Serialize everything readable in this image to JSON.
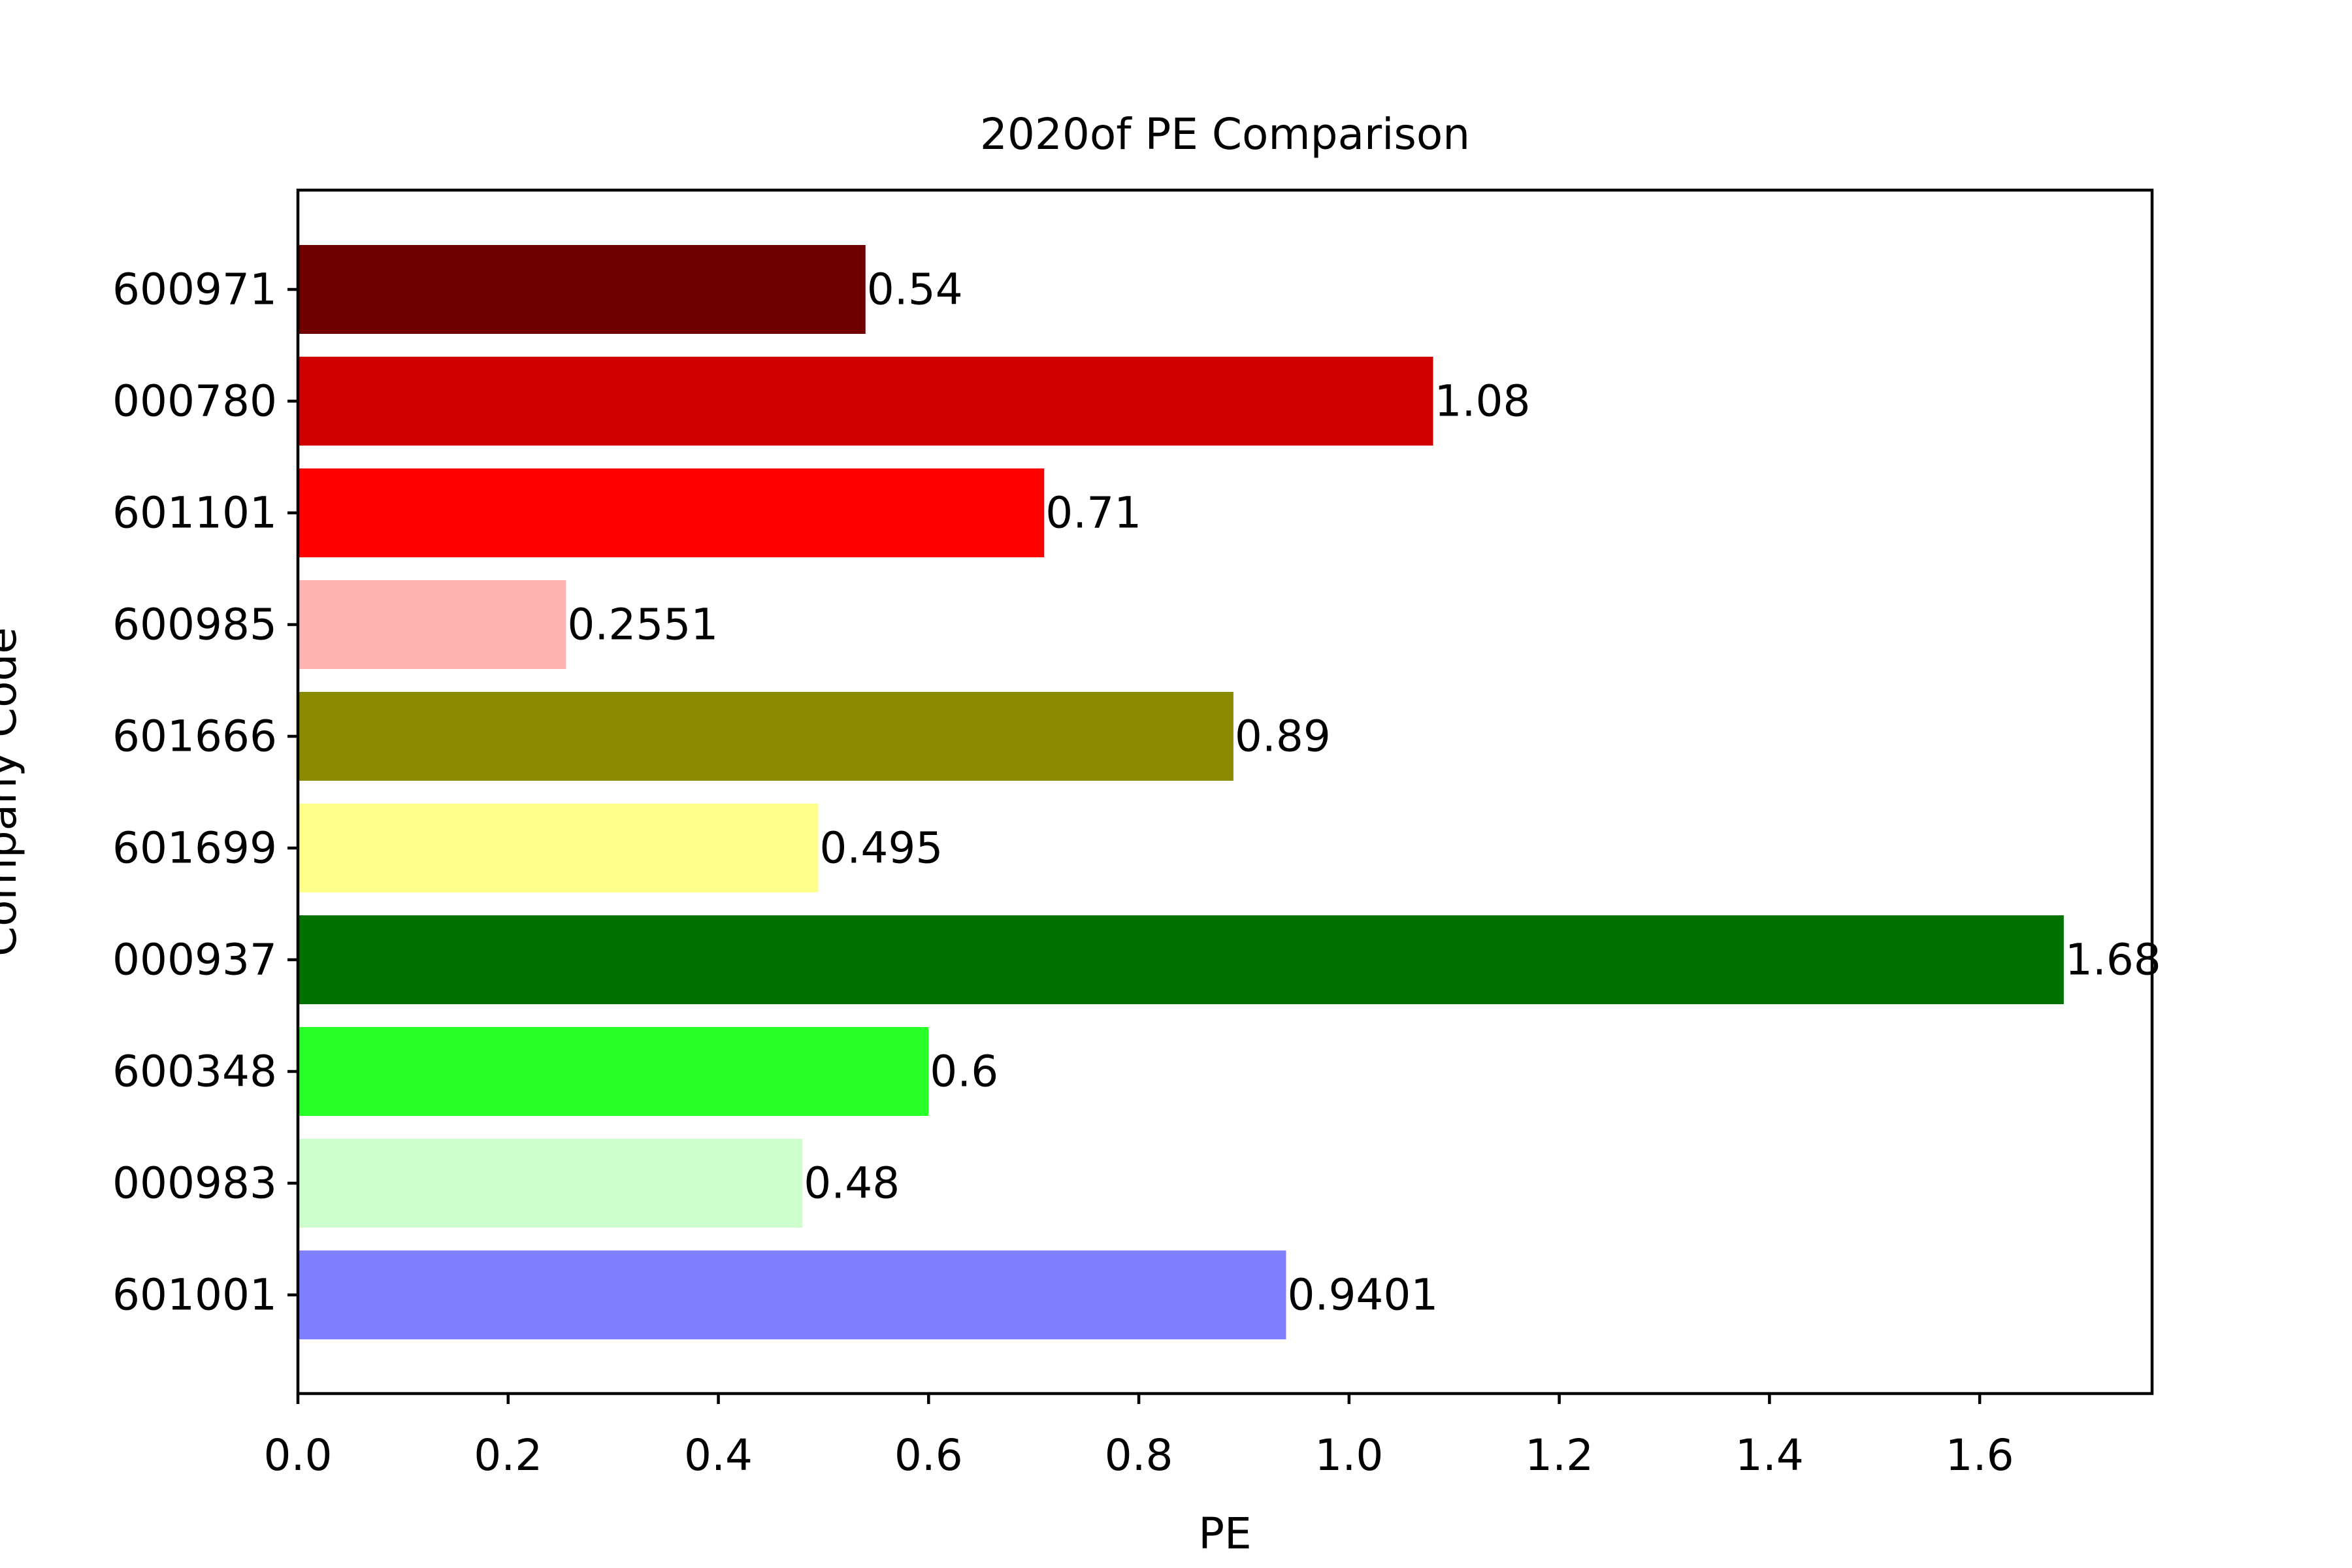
{
  "chart_data": {
    "type": "bar",
    "orientation": "horizontal",
    "title": "2020of PE Comparison",
    "xlabel": "PE",
    "ylabel": "Company Code",
    "xlim": [
      0,
      1.764
    ],
    "xticks": [
      "0.0",
      "0.2",
      "0.4",
      "0.6",
      "0.8",
      "1.0",
      "1.2",
      "1.4",
      "1.6"
    ],
    "grid": false,
    "legend": "none",
    "categories": [
      "600971",
      "000780",
      "601101",
      "600985",
      "601666",
      "601699",
      "000937",
      "600348",
      "000983",
      "601001"
    ],
    "values": [
      0.54,
      1.08,
      0.71,
      0.2551,
      0.89,
      0.495,
      1.68,
      0.6,
      0.48,
      0.9401
    ],
    "value_labels": [
      "0.54",
      "1.08",
      "0.71",
      "0.2551",
      "0.89",
      "0.495",
      "1.68",
      "0.6",
      "0.48",
      "0.9401"
    ],
    "colors": [
      "#700000",
      "#cf0000",
      "#ff0000",
      "#ffb4b4",
      "#8a8a00",
      "#ffff8c",
      "#007200",
      "#28ff28",
      "#ccffcc",
      "#7f7fff"
    ]
  }
}
